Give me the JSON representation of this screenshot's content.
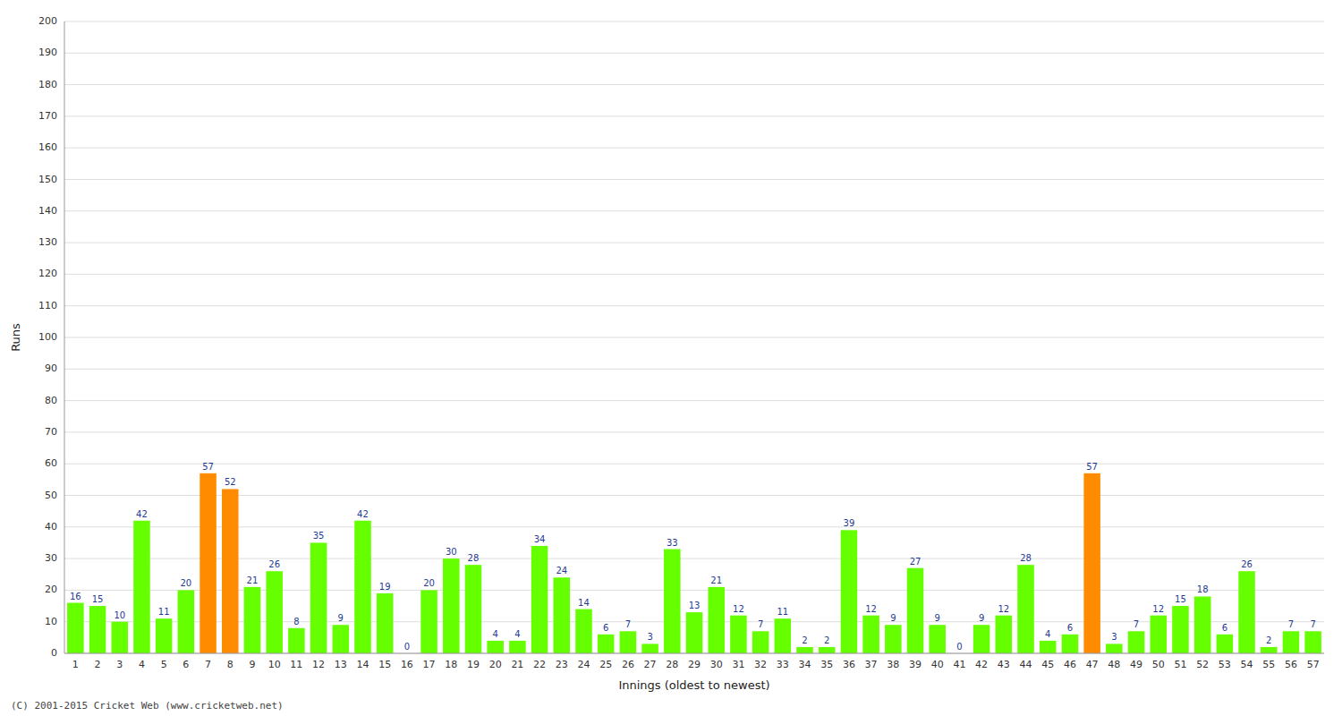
{
  "chart_data": {
    "type": "bar",
    "xlabel": "Innings (oldest to newest)",
    "ylabel": "Runs",
    "categories": [
      "1",
      "2",
      "3",
      "4",
      "5",
      "6",
      "7",
      "8",
      "9",
      "10",
      "11",
      "12",
      "13",
      "14",
      "15",
      "16",
      "17",
      "18",
      "19",
      "20",
      "21",
      "22",
      "23",
      "24",
      "25",
      "26",
      "27",
      "28",
      "29",
      "30",
      "31",
      "32",
      "33",
      "34",
      "35",
      "36",
      "37",
      "38",
      "39",
      "40",
      "41",
      "42",
      "43",
      "44",
      "45",
      "46",
      "47",
      "48",
      "49",
      "50",
      "51",
      "52",
      "53",
      "54",
      "55",
      "56",
      "57"
    ],
    "values": [
      16,
      15,
      10,
      42,
      11,
      20,
      57,
      52,
      21,
      26,
      8,
      35,
      9,
      42,
      19,
      0,
      20,
      30,
      28,
      4,
      4,
      34,
      24,
      14,
      6,
      7,
      3,
      33,
      13,
      21,
      12,
      7,
      11,
      2,
      2,
      39,
      12,
      9,
      27,
      9,
      0,
      9,
      12,
      28,
      4,
      6,
      57,
      3,
      7,
      12,
      15,
      18,
      6,
      26,
      2,
      7,
      7
    ],
    "colors": [
      "#66ff00",
      "#66ff00",
      "#66ff00",
      "#66ff00",
      "#66ff00",
      "#66ff00",
      "#ff8c00",
      "#ff8c00",
      "#66ff00",
      "#66ff00",
      "#66ff00",
      "#66ff00",
      "#66ff00",
      "#66ff00",
      "#66ff00",
      "#66ff00",
      "#66ff00",
      "#66ff00",
      "#66ff00",
      "#66ff00",
      "#66ff00",
      "#66ff00",
      "#66ff00",
      "#66ff00",
      "#66ff00",
      "#66ff00",
      "#66ff00",
      "#66ff00",
      "#66ff00",
      "#66ff00",
      "#66ff00",
      "#66ff00",
      "#66ff00",
      "#66ff00",
      "#66ff00",
      "#66ff00",
      "#66ff00",
      "#66ff00",
      "#66ff00",
      "#66ff00",
      "#66ff00",
      "#66ff00",
      "#66ff00",
      "#66ff00",
      "#66ff00",
      "#66ff00",
      "#ff8c00",
      "#66ff00",
      "#66ff00",
      "#66ff00",
      "#66ff00",
      "#66ff00",
      "#66ff00",
      "#66ff00",
      "#66ff00",
      "#66ff00",
      "#66ff00"
    ],
    "ylim": [
      0,
      200
    ],
    "yticks": [
      0,
      10,
      20,
      30,
      40,
      50,
      60,
      70,
      80,
      90,
      100,
      110,
      120,
      130,
      140,
      150,
      160,
      170,
      180,
      190,
      200
    ],
    "grid": true,
    "data_labels": true,
    "annotations": [
      "(C) 2001-2015 Cricket Web (www.cricketweb.net)"
    ]
  }
}
